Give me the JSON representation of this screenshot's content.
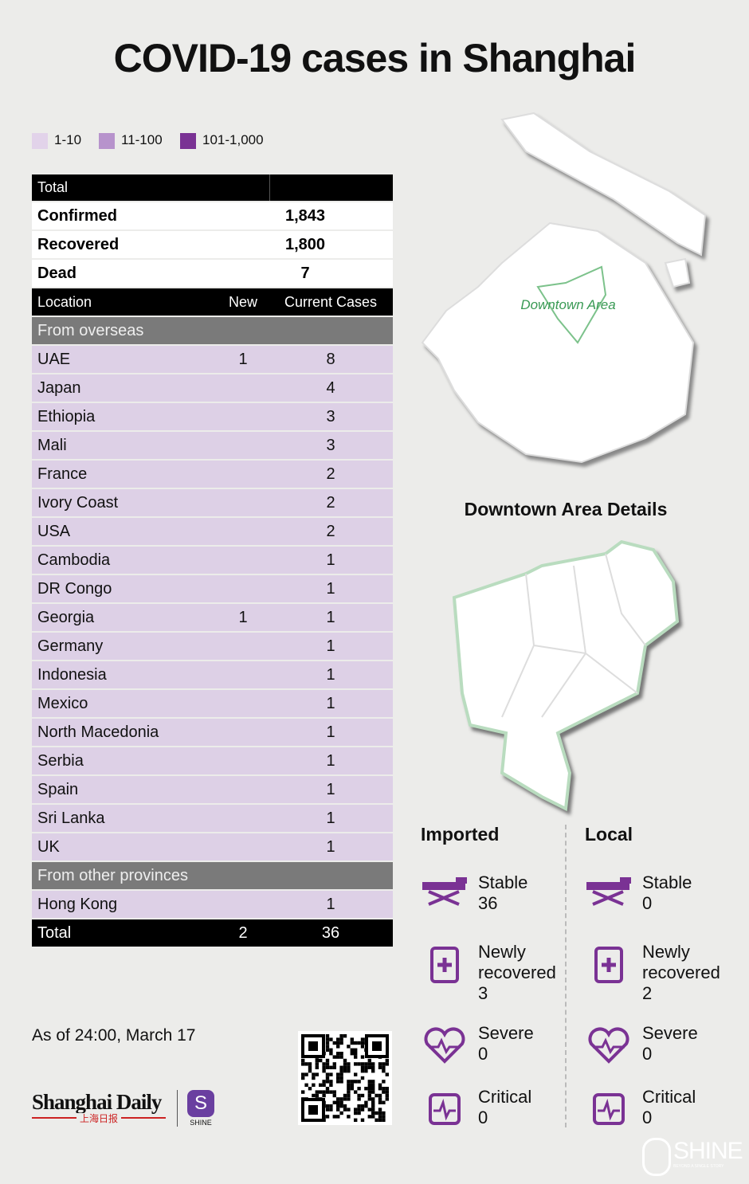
{
  "title": "COVID-19 cases in Shanghai",
  "legend": [
    {
      "label": "1-10",
      "color": "#e2d3ea"
    },
    {
      "label": "11-100",
      "color": "#b793cc"
    },
    {
      "label": "101-1,000",
      "color": "#7a3294"
    }
  ],
  "summary": {
    "header": "Total",
    "rows": [
      {
        "label": "Confirmed",
        "value": "1,843"
      },
      {
        "label": "Recovered",
        "value": "1,800"
      },
      {
        "label": "Dead",
        "value": 7
      }
    ]
  },
  "table": {
    "header": [
      "Location",
      "New",
      "Current Cases"
    ],
    "sections": [
      {
        "name": "From overseas",
        "rows": [
          {
            "location": "UAE",
            "new": 1,
            "current": 8
          },
          {
            "location": "Japan",
            "current": 4
          },
          {
            "location": "Ethiopia",
            "current": 3
          },
          {
            "location": "Mali",
            "current": 3
          },
          {
            "location": "France",
            "current": 2
          },
          {
            "location": "Ivory Coast",
            "current": 2
          },
          {
            "location": "USA",
            "current": 2
          },
          {
            "location": "Cambodia",
            "current": 1
          },
          {
            "location": "DR Congo",
            "current": 1
          },
          {
            "location": "Georgia",
            "new": 1,
            "current": 1
          },
          {
            "location": "Germany",
            "current": 1
          },
          {
            "location": "Indonesia",
            "current": 1
          },
          {
            "location": "Mexico",
            "current": 1
          },
          {
            "location": "North Macedonia",
            "current": 1
          },
          {
            "location": "Serbia",
            "current": 1
          },
          {
            "location": "Spain",
            "current": 1
          },
          {
            "location": "Sri Lanka",
            "current": 1
          },
          {
            "location": "UK",
            "current": 1
          }
        ]
      },
      {
        "name": "From other provinces",
        "rows": [
          {
            "location": "Hong Kong",
            "current": 1
          }
        ]
      }
    ],
    "total": {
      "label": "Total",
      "new": 2,
      "current": 36
    }
  },
  "map": {
    "area_label": "Downtown Area",
    "details_title": "Downtown Area Details"
  },
  "status": [
    {
      "title": "Imported",
      "items": [
        {
          "label": "Stable",
          "value": 36
        },
        {
          "label": "Newly recovered",
          "value": 3
        },
        {
          "label": "Severe",
          "value": 0
        },
        {
          "label": "Critical",
          "value": 0
        }
      ]
    },
    {
      "title": "Local",
      "items": [
        {
          "label": "Stable",
          "value": 0
        },
        {
          "label": "Newly recovered",
          "value": 2
        },
        {
          "label": "Severe",
          "value": 0
        },
        {
          "label": "Critical",
          "value": 0
        }
      ]
    }
  ],
  "date": "As of 24:00, March 17",
  "brand": {
    "name": "Shanghai Daily",
    "chinese": "上海日报",
    "app": "SHINE",
    "watermark": "SHINE",
    "tagline": "BEYOND A SINGLE STORY"
  }
}
